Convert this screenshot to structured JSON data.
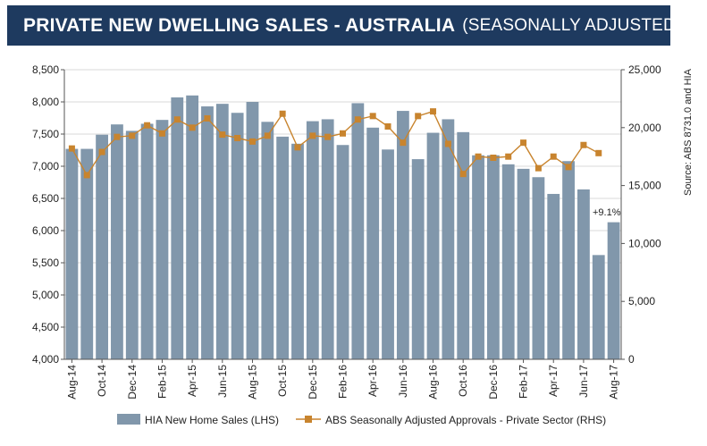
{
  "header": {
    "title": "PRIVATE NEW DWELLING SALES -  AUSTRALIA",
    "subtitle": "(SEASONALLY ADJUSTED)",
    "bg_color": "#1e3a5f"
  },
  "chart_data": {
    "type": "bar+line",
    "categories": [
      "Aug-14",
      "Sep-14",
      "Oct-14",
      "Nov-14",
      "Dec-14",
      "Jan-15",
      "Feb-15",
      "Mar-15",
      "Apr-15",
      "May-15",
      "Jun-15",
      "Jul-15",
      "Aug-15",
      "Sep-15",
      "Oct-15",
      "Nov-15",
      "Dec-15",
      "Jan-16",
      "Feb-16",
      "Mar-16",
      "Apr-16",
      "May-16",
      "Jun-16",
      "Jul-16",
      "Aug-16",
      "Sep-16",
      "Oct-16",
      "Nov-16",
      "Dec-16",
      "Jan-17",
      "Feb-17",
      "Mar-17",
      "Apr-17",
      "May-17",
      "Jun-17",
      "Jul-17",
      "Aug-17"
    ],
    "x_tick_labels": [
      "Aug-14",
      "Oct-14",
      "Dec-14",
      "Feb-15",
      "Apr-15",
      "Jun-15",
      "Aug-15",
      "Oct-15",
      "Dec-15",
      "Feb-16",
      "Apr-16",
      "Jun-16",
      "Aug-16",
      "Oct-16",
      "Dec-16",
      "Feb-17",
      "Apr-17",
      "Jun-17",
      "Aug-17"
    ],
    "series": [
      {
        "name": "HIA New Home Sales (LHS)",
        "kind": "bar",
        "axis": "left",
        "color": "#8197ab",
        "values": [
          7270,
          7270,
          7490,
          7650,
          7550,
          7660,
          7720,
          8070,
          8100,
          7930,
          7970,
          7830,
          8000,
          7690,
          7460,
          7350,
          7700,
          7730,
          7330,
          7980,
          7600,
          7260,
          7860,
          7110,
          7520,
          7730,
          7530,
          7170,
          7170,
          7030,
          6960,
          6830,
          6570,
          7080,
          6640,
          5620,
          6130
        ]
      },
      {
        "name": "ABS Seasonally Adjusted Approvals - Private Sector (RHS)",
        "kind": "line",
        "axis": "right",
        "color": "#c8842e",
        "values": [
          18200,
          15900,
          17900,
          19200,
          19300,
          20200,
          19500,
          20700,
          20000,
          20800,
          19400,
          19100,
          18800,
          19300,
          21200,
          18300,
          19300,
          19200,
          19500,
          20700,
          21000,
          20100,
          18700,
          21000,
          21400,
          18600,
          16000,
          17500,
          17400,
          17500,
          18700,
          16500,
          17500,
          16600,
          18500,
          17800,
          null
        ]
      }
    ],
    "y_left": {
      "min": 4000,
      "max": 8500,
      "step": 500,
      "ticks": [
        "4,000",
        "4,500",
        "5,000",
        "5,500",
        "6,000",
        "6,500",
        "7,000",
        "7,500",
        "8,000",
        "8,500"
      ]
    },
    "y_right": {
      "min": 0,
      "max": 25000,
      "step": 5000,
      "ticks": [
        "0",
        "5,000",
        "10,000",
        "15,000",
        "20,000",
        "25,000"
      ]
    },
    "annotation": "+9.1%",
    "source_note": "Source: ABS 8731.0 and HIA",
    "grid": true,
    "legend_position": "bottom"
  }
}
